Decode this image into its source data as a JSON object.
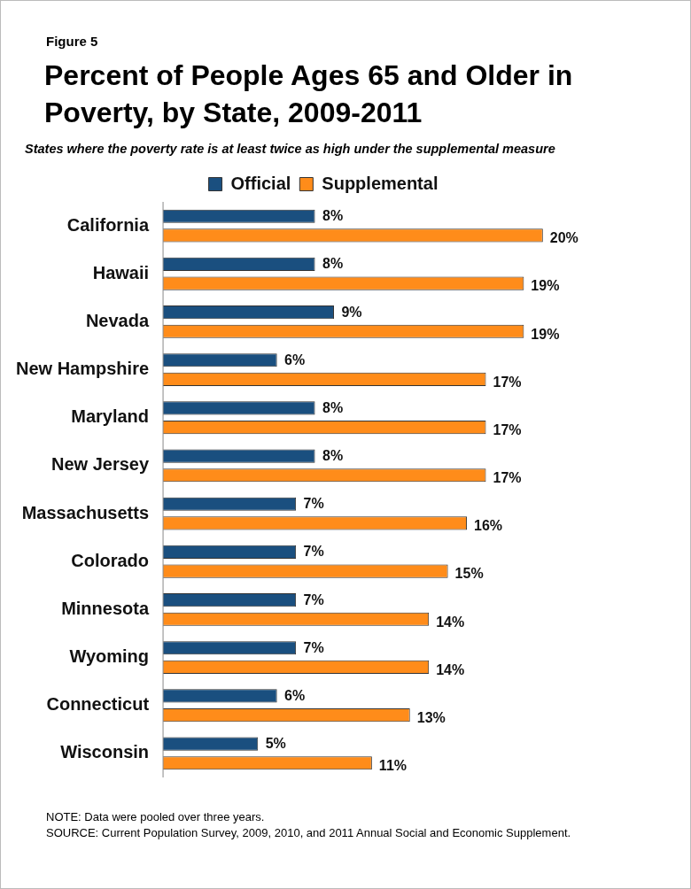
{
  "chart_data": {
    "type": "bar",
    "orientation": "horizontal",
    "title": "Percent of People Ages 65 and Older in Poverty, by State, 2009-2011",
    "subtitle": "States where the poverty rate is at least twice as high under the supplemental measure",
    "categories": [
      "California",
      "Hawaii",
      "Nevada",
      "New Hampshire",
      "Maryland",
      "New Jersey",
      "Massachusetts",
      "Colorado",
      "Minnesota",
      "Wyoming",
      "Connecticut",
      "Wisconsin"
    ],
    "series": [
      {
        "name": "Official",
        "color": "#1a4f7f",
        "values": [
          8,
          8,
          9,
          6,
          8,
          8,
          7,
          7,
          7,
          7,
          6,
          5
        ],
        "value_labels": [
          "8%",
          "8%",
          "9%",
          "6%",
          "8%",
          "8%",
          "7%",
          "7%",
          "7%",
          "7%",
          "6%",
          "5%"
        ]
      },
      {
        "name": "Supplemental",
        "color": "#ff8c1a",
        "values": [
          20,
          19,
          19,
          17,
          17,
          17,
          16,
          15,
          14,
          14,
          13,
          11
        ],
        "value_labels": [
          "20%",
          "19%",
          "19%",
          "17%",
          "17%",
          "17%",
          "16%",
          "15%",
          "14%",
          "14%",
          "13%",
          "11%"
        ]
      }
    ],
    "legend": "top",
    "tick_labels": "y",
    "annotations": [
      "Figure 5",
      "NOTE: Data were pooled over three years.",
      "SOURCE: Current Population Survey, 2009, 2010, and 2011 Annual Social and Economic Supplement."
    ]
  }
}
